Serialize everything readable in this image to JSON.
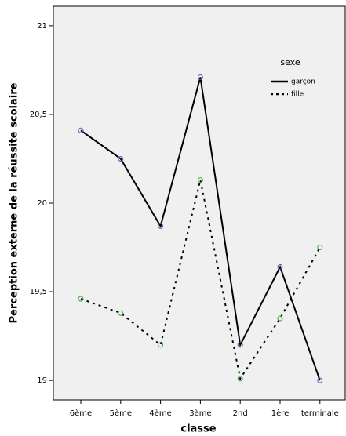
{
  "chart_data": {
    "type": "line",
    "x_label": "classe",
    "y_label": "Perception externe de la réussite scolaire",
    "categories": [
      "6ème",
      "5ème",
      "4ème",
      "3ème",
      "2nd",
      "1ère",
      "terminale"
    ],
    "series": [
      {
        "name": "garçon",
        "color": "#000000",
        "marker_color": "#4a5fb0",
        "dash": "solid",
        "values": [
          20.41,
          20.25,
          19.87,
          20.71,
          19.2,
          19.64,
          19.0
        ]
      },
      {
        "name": "fille",
        "color": "#000000",
        "marker_color": "#3caa3c",
        "dash": "dotted",
        "values": [
          19.46,
          19.38,
          19.2,
          20.13,
          19.01,
          19.35,
          19.75
        ]
      }
    ],
    "ylim": [
      18.89,
      21.11
    ],
    "yticks": [
      19,
      {
        "value": 19.5,
        "label": "19,5"
      },
      20,
      {
        "value": 20.5,
        "label": "20,5"
      },
      21
    ],
    "legend_title": "sexe",
    "legend_position": "upper right",
    "background": "#f0f0f0"
  }
}
